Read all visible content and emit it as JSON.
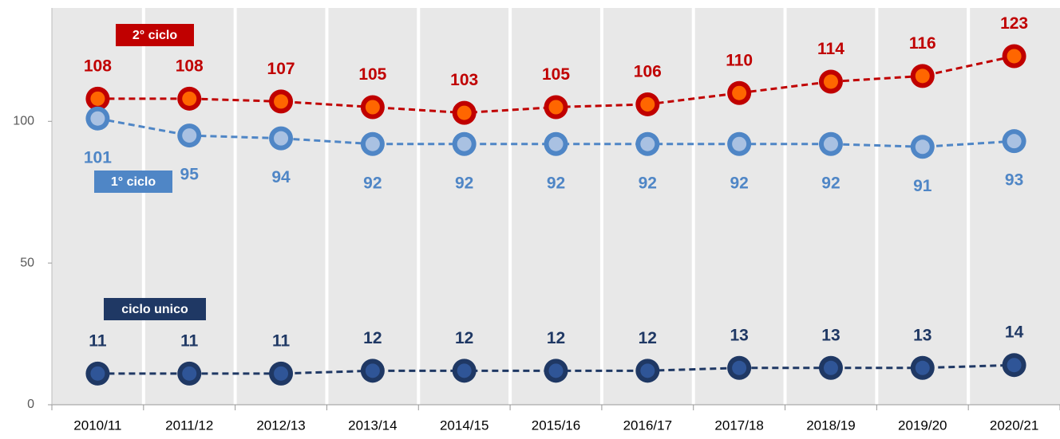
{
  "chart_data": {
    "type": "line",
    "categories": [
      "2010/11",
      "2011/12",
      "2012/13",
      "2013/14",
      "2014/15",
      "2015/16",
      "2016/17",
      "2017/18",
      "2018/19",
      "2019/20",
      "2020/21"
    ],
    "series": [
      {
        "name": "2° ciclo",
        "color": "#c00000",
        "inner_color": "#ff6600",
        "values": [
          108,
          108,
          107,
          105,
          103,
          105,
          106,
          110,
          114,
          116,
          123
        ]
      },
      {
        "name": "1° ciclo",
        "color": "#4f86c6",
        "inner_color": "#a9c1e2",
        "values": [
          101,
          95,
          94,
          92,
          92,
          92,
          92,
          92,
          92,
          91,
          93
        ]
      },
      {
        "name": "ciclo unico",
        "color": "#1f3864",
        "inner_color": "#2f5597",
        "values": [
          11,
          11,
          11,
          12,
          12,
          12,
          12,
          13,
          13,
          13,
          14
        ]
      }
    ],
    "ylim": [
      0,
      140
    ],
    "yticks": [
      0,
      50,
      100
    ]
  }
}
